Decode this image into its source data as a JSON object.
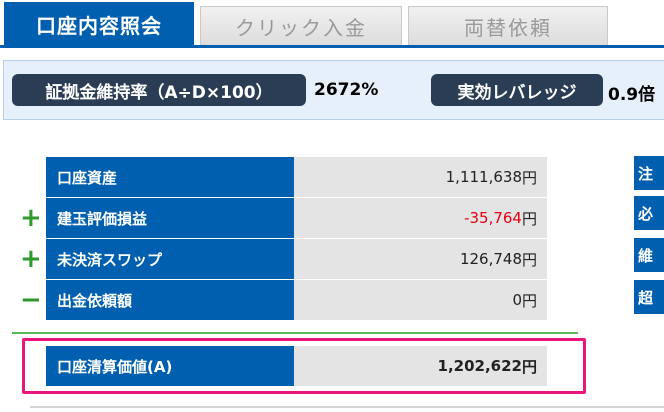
{
  "tabs": [
    {
      "label": "口座内容照会",
      "active": true
    },
    {
      "label": "クリック入金",
      "active": false
    },
    {
      "label": "両替依頼",
      "active": false
    }
  ],
  "info": {
    "margin_ratio_label": "証拠金維持率（A÷D×100）",
    "margin_ratio_value": "2672%",
    "leverage_label": "実効レバレッジ",
    "leverage_value": "0.9倍"
  },
  "account": {
    "rows": [
      {
        "sign": "",
        "label": "口座資産",
        "value": "1,111,638",
        "unit": "円"
      },
      {
        "sign": "+",
        "label": "建玉評価損益",
        "value": "-35,764",
        "unit": "円"
      },
      {
        "sign": "+",
        "label": "未決済スワップ",
        "value": "126,748",
        "unit": "円"
      },
      {
        "sign": "−",
        "label": "出金依頼額",
        "value": "0",
        "unit": "円"
      }
    ],
    "total": {
      "label": "口座清算価値(A)",
      "value": "1,202,622",
      "unit": "円"
    }
  },
  "right_column": {
    "labels": [
      "注",
      "必",
      "維",
      "超"
    ]
  },
  "colors": {
    "primary": "#005fae",
    "negative": "#e60012",
    "plus_sign": "#2e9a2e",
    "highlight": "#e7157e"
  }
}
